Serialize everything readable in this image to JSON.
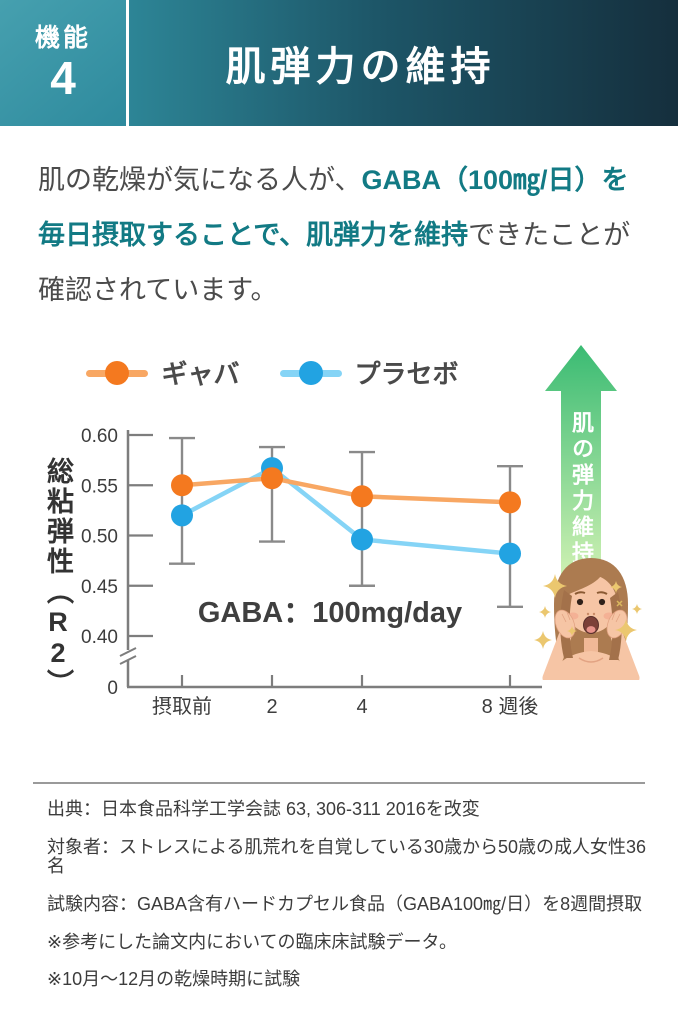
{
  "header": {
    "badge_label": "機能",
    "badge_number": "4",
    "title": "肌弾力の維持"
  },
  "lead": {
    "l1_gray": "肌の乾燥が気になる人が、",
    "l1_teal": "GABA（100㎎/日）を",
    "l2_teal": "毎日摂取することで、肌弾力を維持",
    "l2_gray": "できたことが",
    "l3_gray": "確認されています。"
  },
  "colors": {
    "header_teal": "#2d8596",
    "header_dark": "#152f3d",
    "accent_teal": "#127a84",
    "gaba_marker": "#f4791f",
    "gaba_line": "#f8a763",
    "placebo_marker": "#22a3e2",
    "placebo_line": "#85d4f6",
    "arrow_green_top": "#3abb73",
    "arrow_green_bottom": "#d2f2b4"
  },
  "chart_data": {
    "type": "line",
    "annotation": "GABA：100mg/day",
    "categories": [
      "摂取前",
      "2",
      "4",
      "8 週後"
    ],
    "x_weeks": [
      0,
      2,
      4,
      8
    ],
    "ylabel_main": "総粘弾性",
    "ylabel_paren_open": "（",
    "ylabel_r2": "R2",
    "ylabel_paren_close": "）",
    "yticks": [
      0.6,
      0.55,
      0.5,
      0.45,
      0.4
    ],
    "ytick_labels": [
      "0.60",
      "0.55",
      "0.50",
      "0.45",
      "0.40"
    ],
    "y_zero_label": "0",
    "axis_break": true,
    "ylim_visible": [
      0.4,
      0.6
    ],
    "grid": false,
    "legend_position": "top",
    "axis_color": "#7d7d7d",
    "error_color": "#8a8a8a",
    "series": [
      {
        "name": "ギャバ",
        "marker_color": "#f4791f",
        "line_color": "#f8a763",
        "values": [
          0.55,
          0.557,
          0.539,
          0.533
        ]
      },
      {
        "name": "プラセボ",
        "marker_color": "#22a3e2",
        "line_color": "#85d4f6",
        "values": [
          0.52,
          0.567,
          0.496,
          0.482
        ]
      }
    ],
    "error_bars": [
      {
        "low": 0.472,
        "high": 0.597
      },
      {
        "low": 0.494,
        "high": 0.588
      },
      {
        "low": 0.45,
        "high": 0.583
      },
      {
        "low": 0.429,
        "high": 0.569
      }
    ]
  },
  "arrow": {
    "label": "肌の弾力維持"
  },
  "footer": {
    "lines": [
      "出典：日本食品科学工学会誌 63, 306-311 2016を改変",
      "対象者：ストレスによる肌荒れを自覚している30歳から50歳の成人女性36名",
      "試験内容：GABA含有ハードカプセル食品（GABA100㎎/日）を8週間摂取",
      "※参考にした論文内においての臨床床試験データ。",
      "※10月〜12月の乾燥時期に試験"
    ]
  }
}
